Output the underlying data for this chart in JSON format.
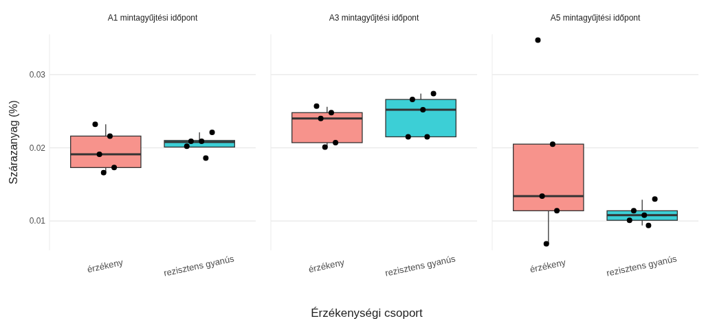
{
  "chart_data": [
    {
      "type": "box",
      "title": "A1 mintagyűjtési időpont",
      "ylabel": "Szárazanyag (%)",
      "categories": [
        "érzékeny",
        "rezisztens gyanús"
      ],
      "colors": [
        "#f7938c",
        "#3ccfd6"
      ],
      "ylim": [
        0.006,
        0.0355
      ],
      "yticks": [
        0.01,
        0.02,
        0.03
      ],
      "grid": "y",
      "boxes": [
        {
          "low": 0.0166,
          "q1": 0.0173,
          "median": 0.0191,
          "q3": 0.0216,
          "high": 0.0232
        },
        {
          "low": 0.0201,
          "q1": 0.0201,
          "median": 0.0208,
          "q3": 0.021,
          "high": 0.0221
        }
      ],
      "series": [
        {
          "type": "scatter",
          "color": "#000000",
          "marker": "circle",
          "x": [
            "érzékeny",
            "érzékeny",
            "érzékeny",
            "érzékeny",
            "érzékeny",
            "rezisztens gyanús",
            "rezisztens gyanús",
            "rezisztens gyanús",
            "rezisztens gyanús",
            "rezisztens gyanús"
          ],
          "values": [
            0.0232,
            0.0216,
            0.0191,
            0.0173,
            0.0166,
            0.0221,
            0.0209,
            0.0209,
            0.0202,
            0.0186
          ]
        }
      ]
    },
    {
      "type": "box",
      "title": "A3 mintagyűjtési időpont",
      "xlabel": "Érzékenységi csoport",
      "categories": [
        "érzékeny",
        "rezisztens gyanús"
      ],
      "colors": [
        "#f7938c",
        "#3ccfd6"
      ],
      "ylim": [
        0.006,
        0.0355
      ],
      "yticks": [
        0.01,
        0.02,
        0.03
      ],
      "grid": "y",
      "tick_labels": "x",
      "boxes": [
        {
          "low": 0.0201,
          "q1": 0.0207,
          "median": 0.024,
          "q3": 0.0248,
          "high": 0.0256
        },
        {
          "low": 0.0215,
          "q1": 0.0215,
          "median": 0.0252,
          "q3": 0.0266,
          "high": 0.0274
        }
      ],
      "series": [
        {
          "type": "scatter",
          "color": "#000000",
          "marker": "circle",
          "x": [
            "érzékeny",
            "érzékeny",
            "érzékeny",
            "érzékeny",
            "érzékeny",
            "rezisztens gyanús",
            "rezisztens gyanús",
            "rezisztens gyanús",
            "rezisztens gyanús",
            "rezisztens gyanús"
          ],
          "values": [
            0.0257,
            0.0248,
            0.024,
            0.0207,
            0.0201,
            0.0274,
            0.0266,
            0.0252,
            0.0215,
            0.0215
          ]
        }
      ]
    },
    {
      "type": "box",
      "title": "A5 mintagyűjtési időpont",
      "categories": [
        "érzékeny",
        "rezisztens gyanús"
      ],
      "colors": [
        "#f7938c",
        "#3ccfd6"
      ],
      "ylim": [
        0.006,
        0.0355
      ],
      "yticks": [
        0.01,
        0.02,
        0.03
      ],
      "grid": "y",
      "tick_labels": "x",
      "boxes": [
        {
          "low": 0.0069,
          "q1": 0.0114,
          "median": 0.0134,
          "q3": 0.0205,
          "high": 0.0205
        },
        {
          "low": 0.0094,
          "q1": 0.0101,
          "median": 0.0108,
          "q3": 0.0114,
          "high": 0.0129
        }
      ],
      "series": [
        {
          "type": "scatter",
          "color": "#000000",
          "marker": "circle",
          "x": [
            "érzékeny",
            "érzékeny",
            "érzékeny",
            "érzékeny",
            "érzékeny",
            "rezisztens gyanús",
            "rezisztens gyanús",
            "rezisztens gyanús",
            "rezisztens gyanús",
            "rezisztens gyanús"
          ],
          "values": [
            0.0347,
            0.0205,
            0.0134,
            0.0114,
            0.0069,
            0.013,
            0.0114,
            0.0108,
            0.0101,
            0.0094
          ]
        }
      ]
    }
  ]
}
